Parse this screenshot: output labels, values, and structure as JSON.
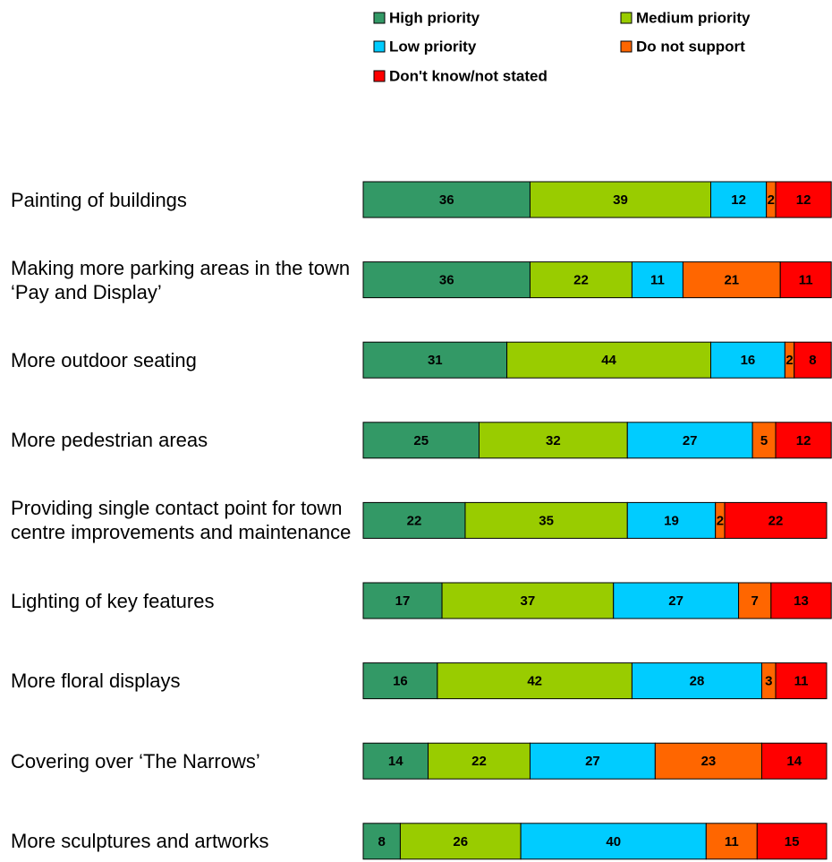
{
  "chart_data": {
    "type": "bar",
    "orientation": "horizontal",
    "stacked": true,
    "categories": [
      "Painting of buildings",
      "Making more parking areas in the town ‘Pay and Display’",
      "More outdoor seating",
      "More pedestrian areas",
      "Providing single contact point for town centre improvements and maintenance",
      "Lighting of key features",
      "More floral displays",
      "Covering over ‘The Narrows’",
      "More sculptures and artworks"
    ],
    "series": [
      {
        "name": "High priority",
        "color": "#339966",
        "values": [
          36,
          36,
          31,
          25,
          22,
          17,
          16,
          14,
          8
        ]
      },
      {
        "name": "Medium priority",
        "color": "#99cc00",
        "values": [
          39,
          22,
          44,
          32,
          35,
          37,
          42,
          22,
          26
        ]
      },
      {
        "name": "Low priority",
        "color": "#00ccff",
        "values": [
          12,
          11,
          16,
          27,
          19,
          27,
          28,
          27,
          40
        ]
      },
      {
        "name": "Do not support",
        "color": "#ff6600",
        "values": [
          2,
          21,
          2,
          5,
          2,
          7,
          3,
          23,
          11
        ]
      },
      {
        "name": "Don't know/not stated",
        "color": "#ff0000",
        "values": [
          12,
          11,
          8,
          12,
          22,
          13,
          11,
          14,
          15
        ]
      }
    ],
    "legend": "top"
  }
}
